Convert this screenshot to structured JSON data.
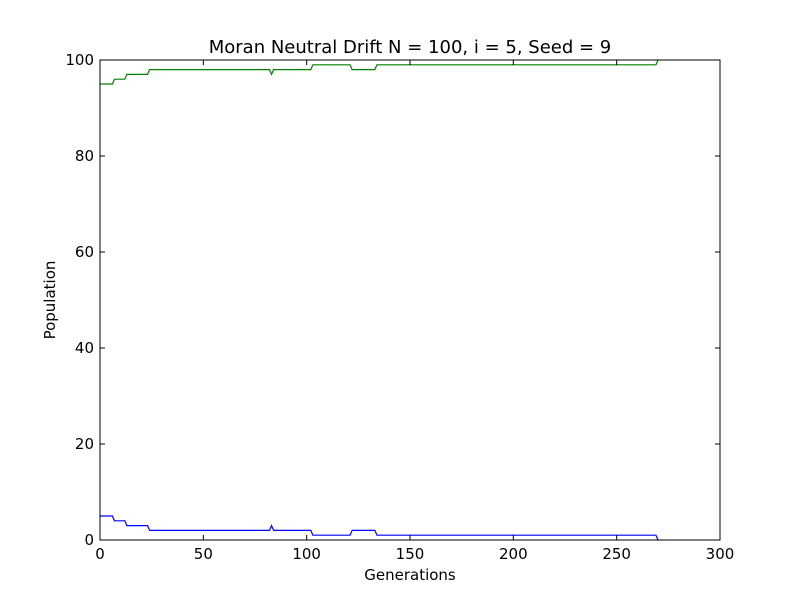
{
  "chart_data": {
    "type": "line",
    "title": "Moran Neutral Drift N = 100, i = 5, Seed = 9",
    "xlabel": "Generations",
    "ylabel": "Population",
    "xlim": [
      0,
      300
    ],
    "ylim": [
      0,
      100
    ],
    "xticks": [
      "0",
      "50",
      "100",
      "150",
      "200",
      "250",
      "300"
    ],
    "yticks": [
      "0",
      "20",
      "40",
      "60",
      "80",
      "100"
    ],
    "grid": false,
    "legend": "none",
    "series": [
      {
        "color": "#0000ff",
        "x": [
          0,
          6,
          7,
          12,
          13,
          23,
          24,
          82,
          83,
          84,
          102,
          103,
          121,
          122,
          133,
          134,
          269,
          270
        ],
        "y": [
          5,
          5,
          4,
          4,
          3,
          3,
          2,
          2,
          3,
          2,
          2,
          1,
          1,
          2,
          2,
          1,
          1,
          0
        ]
      },
      {
        "color": "#008000",
        "x": [
          0,
          6,
          7,
          12,
          13,
          23,
          24,
          82,
          83,
          84,
          102,
          103,
          121,
          122,
          133,
          134,
          269,
          270
        ],
        "y": [
          95,
          95,
          96,
          96,
          97,
          97,
          98,
          98,
          97,
          98,
          98,
          99,
          99,
          98,
          98,
          99,
          99,
          100
        ]
      }
    ]
  }
}
